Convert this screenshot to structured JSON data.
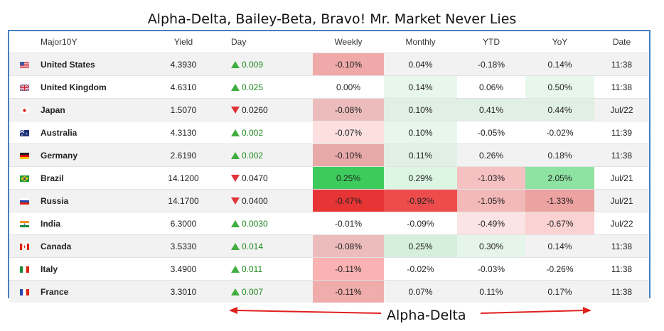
{
  "title": "Alpha-Delta, Bailey-Beta, Bravo! Mr. Market Never Lies",
  "annotation": "Alpha-Delta",
  "chart_data": {
    "type": "table",
    "columns": [
      "",
      "Major10Y",
      "Yield",
      "Day",
      "Weekly",
      "Monthly",
      "YTD",
      "YoY",
      "Date"
    ],
    "rows": [
      {
        "flag": "us-flag-icon",
        "country": "United States",
        "yield": "4.3930",
        "day_dir": "up",
        "day": "0.009",
        "weekly": "-0.10%",
        "monthly": "0.04%",
        "ytd": "-0.18%",
        "yoy": "0.14%",
        "date": "11:38",
        "colors": {
          "weekly": "#f0a9a9",
          "monthly": "",
          "ytd": "",
          "yoy": ""
        }
      },
      {
        "flag": "uk-flag-icon",
        "country": "United Kingdom",
        "yield": "4.6310",
        "day_dir": "up",
        "day": "0.025",
        "weekly": "0.00%",
        "monthly": "0.14%",
        "ytd": "0.06%",
        "yoy": "0.50%",
        "date": "11:38",
        "colors": {
          "weekly": "",
          "monthly": "#e8f7ec",
          "ytd": "",
          "yoy": "#e8f7ec"
        }
      },
      {
        "flag": "japan-flag-icon",
        "country": "Japan",
        "yield": "1.5070",
        "day_dir": "down",
        "day": "0.0260",
        "weekly": "-0.08%",
        "monthly": "0.10%",
        "ytd": "0.41%",
        "yoy": "0.44%",
        "date": "Jul/22",
        "colors": {
          "weekly": "#ecbcbc",
          "monthly": "#e1f0e4",
          "ytd": "#e1f0e4",
          "yoy": "#e1f0e4"
        }
      },
      {
        "flag": "australia-flag-icon",
        "country": "Australia",
        "yield": "4.3130",
        "day_dir": "up",
        "day": "0.002",
        "weekly": "-0.07%",
        "monthly": "0.10%",
        "ytd": "-0.05%",
        "yoy": "-0.02%",
        "date": "11:39",
        "colors": {
          "weekly": "#fce0e0",
          "monthly": "#e8f7ec",
          "ytd": "",
          "yoy": ""
        }
      },
      {
        "flag": "germany-flag-icon",
        "country": "Germany",
        "yield": "2.6190",
        "day_dir": "up",
        "day": "0.002",
        "weekly": "-0.10%",
        "monthly": "0.11%",
        "ytd": "0.26%",
        "yoy": "0.18%",
        "date": "11:38",
        "colors": {
          "weekly": "#e8a9a9",
          "monthly": "#e1f0e4",
          "ytd": "",
          "yoy": ""
        }
      },
      {
        "flag": "brazil-flag-icon",
        "country": "Brazil",
        "yield": "14.1200",
        "day_dir": "down",
        "day": "0.0470",
        "weekly": "0.25%",
        "monthly": "0.29%",
        "ytd": "-1.03%",
        "yoy": "2.05%",
        "date": "Jul/21",
        "colors": {
          "weekly": "#3dcc5c",
          "monthly": "#dcf6e3",
          "ytd": "#f5c1c1",
          "yoy": "#8ee3a3"
        }
      },
      {
        "flag": "russia-flag-icon",
        "country": "Russia",
        "yield": "14.1700",
        "day_dir": "down",
        "day": "0.0400",
        "weekly": "-0.47%",
        "monthly": "-0.92%",
        "ytd": "-1.05%",
        "yoy": "-1.33%",
        "date": "Jul/21",
        "colors": {
          "weekly": "#e73536",
          "monthly": "#ee4c4c",
          "ytd": "#f3b9b9",
          "yoy": "#eda2a2"
        }
      },
      {
        "flag": "india-flag-icon",
        "country": "India",
        "yield": "6.3000",
        "day_dir": "up",
        "day": "0.0030",
        "weekly": "-0.01%",
        "monthly": "-0.09%",
        "ytd": "-0.49%",
        "yoy": "-0.67%",
        "date": "Jul/22",
        "colors": {
          "weekly": "",
          "monthly": "",
          "ytd": "#fde4e4",
          "yoy": "#fad2d2"
        }
      },
      {
        "flag": "canada-flag-icon",
        "country": "Canada",
        "yield": "3.5330",
        "day_dir": "up",
        "day": "0.014",
        "weekly": "-0.08%",
        "monthly": "0.25%",
        "ytd": "0.30%",
        "yoy": "0.14%",
        "date": "11:38",
        "colors": {
          "weekly": "#ecbcbc",
          "monthly": "#d6efdc",
          "ytd": "#e6f5e9",
          "yoy": ""
        }
      },
      {
        "flag": "italy-flag-icon",
        "country": "Italy",
        "yield": "3.4900",
        "day_dir": "up",
        "day": "0.011",
        "weekly": "-0.11%",
        "monthly": "-0.02%",
        "ytd": "-0.03%",
        "yoy": "-0.26%",
        "date": "11:38",
        "colors": {
          "weekly": "#fbb2b2",
          "monthly": "",
          "ytd": "",
          "yoy": ""
        }
      },
      {
        "flag": "france-flag-icon",
        "country": "France",
        "yield": "3.3010",
        "day_dir": "up",
        "day": "0.007",
        "weekly": "-0.11%",
        "monthly": "0.07%",
        "ytd": "0.11%",
        "yoy": "0.17%",
        "date": "11:38",
        "colors": {
          "weekly": "#f0abab",
          "monthly": "",
          "ytd": "",
          "yoy": ""
        }
      }
    ]
  }
}
